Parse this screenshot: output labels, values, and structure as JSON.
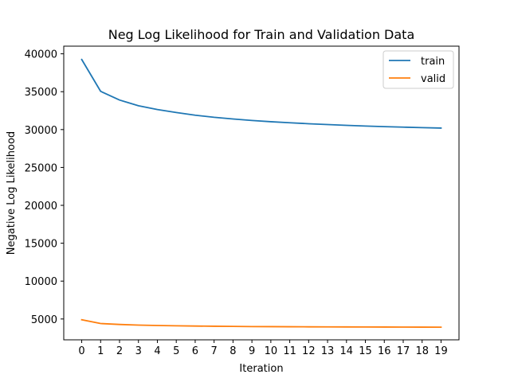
{
  "chart_data": {
    "type": "line",
    "title": "Neg Log Likelihood for Train and Validation Data",
    "xlabel": "Iteration",
    "ylabel": "Negative Log Likelihood",
    "x": [
      0,
      1,
      2,
      3,
      4,
      5,
      6,
      7,
      8,
      9,
      10,
      11,
      12,
      13,
      14,
      15,
      16,
      17,
      18,
      19
    ],
    "x_ticks": [
      0,
      1,
      2,
      3,
      4,
      5,
      6,
      7,
      8,
      9,
      10,
      11,
      12,
      13,
      14,
      15,
      16,
      17,
      18,
      19
    ],
    "y_ticks": [
      5000,
      10000,
      15000,
      20000,
      25000,
      30000,
      35000,
      40000
    ],
    "xlim": [
      -0.95,
      19.95
    ],
    "ylim": [
      2250,
      41010
    ],
    "grid": false,
    "legend_position": "upper right",
    "series": [
      {
        "name": "train",
        "color": "#1f77b4",
        "values": [
          39250,
          35050,
          33900,
          33150,
          32650,
          32250,
          31900,
          31620,
          31400,
          31200,
          31040,
          30900,
          30770,
          30660,
          30560,
          30470,
          30390,
          30320,
          30260,
          30200
        ]
      },
      {
        "name": "valid",
        "color": "#ff7f0e",
        "values": [
          4900,
          4400,
          4280,
          4190,
          4140,
          4100,
          4070,
          4040,
          4020,
          4000,
          3990,
          3975,
          3965,
          3955,
          3948,
          3942,
          3935,
          3928,
          3922,
          3918
        ]
      }
    ]
  }
}
